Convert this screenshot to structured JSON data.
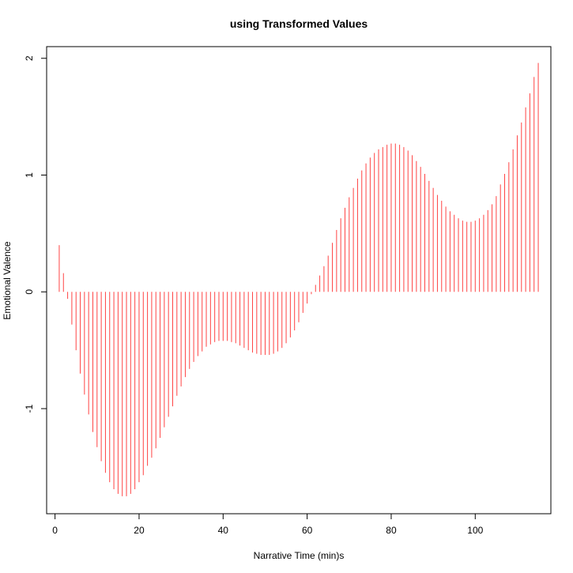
{
  "chart_data": {
    "type": "bar",
    "title": "using Transformed Values",
    "xlabel": "Narrative Time (min)s",
    "ylabel": "Emotional Valence",
    "xlim": [
      -2,
      118
    ],
    "ylim": [
      -1.9,
      2.1
    ],
    "x_ticks": [
      0,
      20,
      40,
      60,
      80,
      100
    ],
    "y_ticks": [
      -1,
      0,
      1,
      2
    ],
    "grid": false,
    "legend": "none",
    "bar_color": "#ff4444",
    "x": [
      1,
      2,
      3,
      4,
      5,
      6,
      7,
      8,
      9,
      10,
      11,
      12,
      13,
      14,
      15,
      16,
      17,
      18,
      19,
      20,
      21,
      22,
      23,
      24,
      25,
      26,
      27,
      28,
      29,
      30,
      31,
      32,
      33,
      34,
      35,
      36,
      37,
      38,
      39,
      40,
      41,
      42,
      43,
      44,
      45,
      46,
      47,
      48,
      49,
      50,
      51,
      52,
      53,
      54,
      55,
      56,
      57,
      58,
      59,
      60,
      61,
      62,
      63,
      64,
      65,
      66,
      67,
      68,
      69,
      70,
      71,
      72,
      73,
      74,
      75,
      76,
      77,
      78,
      79,
      80,
      81,
      82,
      83,
      84,
      85,
      86,
      87,
      88,
      89,
      90,
      91,
      92,
      93,
      94,
      95,
      96,
      97,
      98,
      99,
      100,
      101,
      102,
      103,
      104,
      105,
      106,
      107,
      108,
      109,
      110,
      111,
      112,
      113,
      114,
      115
    ],
    "values": [
      0.4,
      0.16,
      -0.06,
      -0.28,
      -0.5,
      -0.7,
      -0.88,
      -1.05,
      -1.2,
      -1.33,
      -1.45,
      -1.55,
      -1.63,
      -1.69,
      -1.73,
      -1.75,
      -1.75,
      -1.73,
      -1.69,
      -1.63,
      -1.57,
      -1.49,
      -1.42,
      -1.34,
      -1.25,
      -1.16,
      -1.07,
      -0.98,
      -0.89,
      -0.81,
      -0.73,
      -0.66,
      -0.6,
      -0.55,
      -0.51,
      -0.47,
      -0.45,
      -0.43,
      -0.42,
      -0.42,
      -0.42,
      -0.43,
      -0.44,
      -0.46,
      -0.48,
      -0.5,
      -0.52,
      -0.53,
      -0.54,
      -0.54,
      -0.54,
      -0.53,
      -0.51,
      -0.48,
      -0.44,
      -0.39,
      -0.33,
      -0.26,
      -0.18,
      -0.1,
      -0.02,
      0.06,
      0.14,
      0.22,
      0.31,
      0.42,
      0.53,
      0.63,
      0.72,
      0.81,
      0.89,
      0.97,
      1.04,
      1.1,
      1.15,
      1.19,
      1.22,
      1.24,
      1.26,
      1.27,
      1.27,
      1.26,
      1.24,
      1.21,
      1.17,
      1.12,
      1.07,
      1.01,
      0.95,
      0.89,
      0.83,
      0.78,
      0.73,
      0.69,
      0.66,
      0.63,
      0.61,
      0.6,
      0.6,
      0.61,
      0.63,
      0.66,
      0.7,
      0.75,
      0.82,
      0.92,
      1.01,
      1.11,
      1.22,
      1.34,
      1.45,
      1.58,
      1.7,
      1.84,
      1.96
    ]
  }
}
